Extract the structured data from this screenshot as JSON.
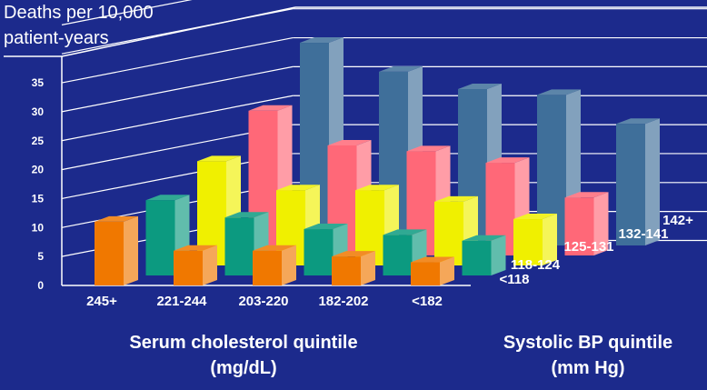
{
  "colors": {
    "background": "#1c2a8c",
    "grid": "#ffffff",
    "series": [
      "#f07800",
      "#0c9a80",
      "#f0f000",
      "#ff6878",
      "#3f6f9a"
    ]
  },
  "y_title_lines": [
    "Deaths per 10,000",
    "patient-years"
  ],
  "x_title_lines": [
    "Serum cholesterol quintile",
    "(mg/dL)"
  ],
  "z_title_lines": [
    "Systolic BP quintile",
    "(mm Hg)"
  ],
  "chart_data": {
    "type": "bar",
    "subtype": "3d-grouped",
    "y_label": "Deaths per 10,000 patient-years",
    "x_label": "Serum cholesterol quintile (mg/dL)",
    "z_label": "Systolic BP quintile (mm Hg)",
    "y_ticks": [
      0,
      5,
      10,
      15,
      20,
      25,
      30,
      35
    ],
    "ylim": [
      0,
      35
    ],
    "categories": [
      "245+",
      "221-244",
      "203-220",
      "182-202",
      "<182"
    ],
    "series": [
      {
        "name": "<118",
        "values": [
          11,
          6,
          6,
          5,
          4
        ]
      },
      {
        "name": "118-124",
        "values": [
          13,
          10,
          8,
          7,
          6
        ]
      },
      {
        "name": "125-131",
        "values": [
          18,
          13,
          13,
          11,
          8
        ]
      },
      {
        "name": "132-141",
        "values": [
          25,
          19,
          18,
          16,
          10
        ]
      },
      {
        "name": "142+",
        "values": [
          35,
          30,
          27,
          26,
          21
        ]
      }
    ]
  }
}
